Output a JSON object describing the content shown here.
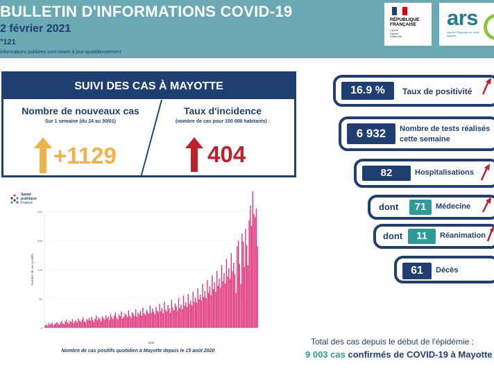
{
  "header": {
    "title": "BULLETIN D'INFORMATIONS COVID-19",
    "date": "2 février 2021",
    "number": "°121",
    "note": "informations publiées sont mises à jour quotidiennement",
    "logo_rf_line1": "RÉPUBLIQUE",
    "logo_rf_line2": "FRANÇAISE",
    "logo_rf_motto1": "Liberté",
    "logo_rf_motto2": "Égalité",
    "logo_rf_motto3": "Fraternité",
    "logo_ars": "ars",
    "logo_ars_sub": "Agence Régionale de Santé Mayotte"
  },
  "panel": {
    "title": "SUIVI DES CAS À MAYOTTE",
    "left_title": "Nombre de nouveaux cas",
    "left_sub": "Sur 1 semaine (du 24 au 30/01)",
    "left_value": "+1129",
    "right_title": "Taux d'incidence",
    "right_sub": "(nombre de cas pour 100 000 habitants) :",
    "right_value": "404"
  },
  "spf_logo": {
    "line1": "Santé",
    "line2": "publique",
    "line3": "France"
  },
  "chart_caption": "Nombre de cas positifs quotidien à Mayotte depuis le 15 août 2020",
  "chart_data": {
    "type": "bar",
    "title": "",
    "xlabel": "date",
    "ylabel": "Nombre de cas positifs",
    "ylim": [
      0,
      200
    ],
    "yticks": [
      0,
      50,
      100,
      150,
      200
    ],
    "color": "#e0327a",
    "values": [
      4,
      6,
      3,
      8,
      5,
      7,
      9,
      4,
      6,
      8,
      10,
      7,
      5,
      9,
      12,
      8,
      6,
      11,
      14,
      9,
      7,
      12,
      10,
      15,
      8,
      11,
      13,
      9,
      16,
      12,
      10,
      14,
      18,
      11,
      9,
      15,
      13,
      17,
      12,
      19,
      14,
      10,
      16,
      21,
      13,
      18,
      15,
      11,
      20,
      17,
      14,
      22,
      16,
      19,
      13,
      24,
      18,
      15,
      21,
      26,
      17,
      14,
      23,
      20,
      28,
      16,
      19,
      25,
      22,
      18,
      30,
      21,
      17,
      27,
      24,
      20,
      32,
      19,
      26,
      23,
      29,
      21,
      35,
      25,
      22,
      31,
      27,
      24,
      38,
      26,
      33,
      28,
      23,
      36,
      30,
      27,
      41,
      29,
      34,
      25,
      45,
      31,
      28,
      39,
      33,
      26,
      48,
      35,
      30,
      42,
      37,
      29,
      51,
      34,
      40,
      32,
      55,
      38,
      44,
      36,
      58,
      41,
      47,
      39,
      62,
      45,
      52,
      43,
      68,
      49,
      57,
      47,
      75,
      53,
      63,
      51,
      82,
      60,
      71,
      56,
      90,
      66,
      78,
      62,
      98,
      72,
      85,
      69,
      108,
      80,
      94,
      76,
      118,
      88,
      102,
      84,
      128,
      97,
      112,
      92,
      60,
      140,
      150,
      110,
      75,
      162,
      148,
      105,
      170,
      142,
      108
    ],
    "values_note": "",
    "last_values": [
      185,
      210,
      175,
      240,
      195,
      190,
      205,
      140
    ]
  },
  "indicators": [
    {
      "value": "16.9 %",
      "label": "Taux de positivité"
    },
    {
      "value": "6 932",
      "label": "Nombre de tests réalisés cette semaine"
    },
    {
      "value": "82",
      "label": "Hospitalisations"
    },
    {
      "prefix": "dont",
      "value": "71",
      "label": "Médecine"
    },
    {
      "prefix": "dont",
      "value": "11",
      "label": "Réanimation"
    },
    {
      "value": "61",
      "label": "Décès"
    }
  ],
  "total": {
    "line1": "Total des cas depuis le début de l'épidémie :",
    "count": "9 003 cas",
    "rest": "confirmés de COVID-19 à Mayotte"
  },
  "colors": {
    "navy": "#1f3e72",
    "teal": "#2e9a9a",
    "header": "#6aa9b4",
    "orange": "#f2b04a",
    "red": "#c0202a"
  }
}
